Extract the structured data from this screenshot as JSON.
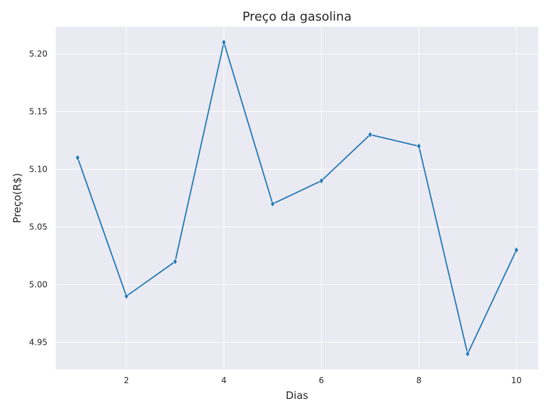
{
  "chart_data": {
    "type": "line",
    "title": "Preço da gasolina",
    "xlabel": "Dias",
    "ylabel": "Preço(R$)",
    "x": [
      1,
      2,
      3,
      4,
      5,
      6,
      7,
      8,
      9,
      10
    ],
    "series": [
      {
        "values": [
          5.11,
          4.99,
          5.02,
          5.21,
          5.07,
          5.09,
          5.13,
          5.12,
          4.94,
          5.03
        ],
        "color": "#1f77b4",
        "marker": "thin-diamond"
      }
    ],
    "xlim": [
      0.55,
      10.45
    ],
    "ylim": [
      4.9265,
      5.2235
    ],
    "xticks": [
      2,
      4,
      6,
      8,
      10
    ],
    "xtick_labels": [
      "2",
      "4",
      "6",
      "8",
      "10"
    ],
    "yticks": [
      4.95,
      5.0,
      5.05,
      5.1,
      5.15,
      5.2
    ],
    "ytick_labels": [
      "4.95",
      "5.00",
      "5.05",
      "5.10",
      "5.15",
      "5.20"
    ],
    "grid": true,
    "style": "darkgrid",
    "background_color": "#eaeaf2",
    "grid_color": "#ffffff"
  }
}
